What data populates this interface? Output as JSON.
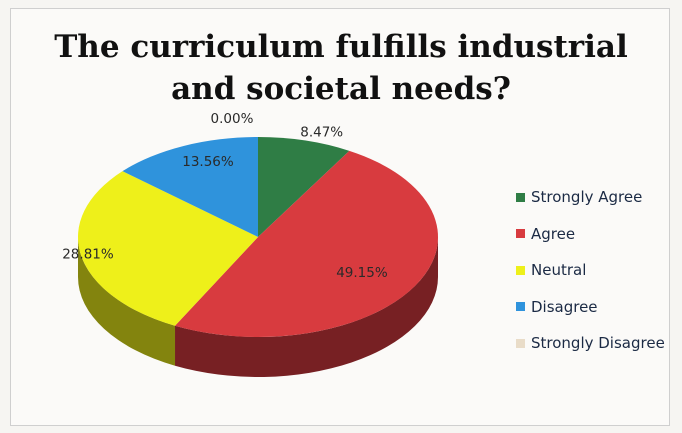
{
  "chart_data": {
    "type": "pie",
    "title_lines": [
      "The curriculum fulfills industrial",
      "and societal needs?"
    ],
    "categories": [
      "Strongly Agree",
      "Agree",
      "Neutral",
      "Disagree",
      "Strongly Disagree"
    ],
    "values": [
      8.47,
      49.15,
      28.81,
      13.56,
      0.0
    ],
    "data_labels": [
      "8.47%",
      "49.15%",
      "28.81%",
      "13.56%",
      "0.00%"
    ],
    "colors": [
      "#2f7d45",
      "#d83b3f",
      "#eef01a",
      "#2f93dc",
      "#e9dcc8"
    ],
    "legend_position": "right",
    "style": "3d-pie"
  }
}
